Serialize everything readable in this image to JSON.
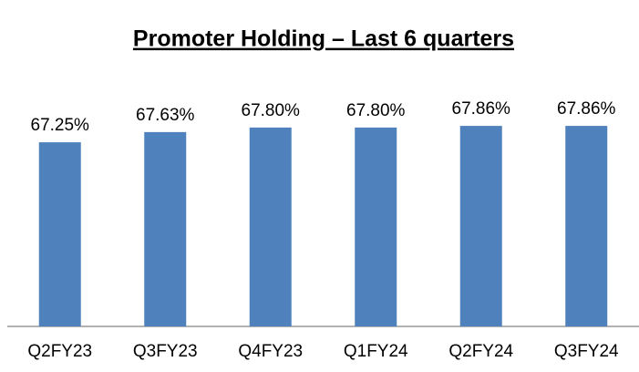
{
  "chart_data": {
    "type": "bar",
    "title": "Promoter Holding – Last 6 quarters",
    "categories": [
      "Q2FY23",
      "Q3FY23",
      "Q4FY23",
      "Q1FY24",
      "Q2FY24",
      "Q3FY24"
    ],
    "values": [
      67.25,
      67.63,
      67.8,
      67.8,
      67.86,
      67.86
    ],
    "value_labels": [
      "67.25%",
      "67.63%",
      "67.80%",
      "67.80%",
      "67.86%",
      "67.86%"
    ],
    "color": "#4f81bd",
    "ylim": [
      60.4,
      70
    ]
  }
}
